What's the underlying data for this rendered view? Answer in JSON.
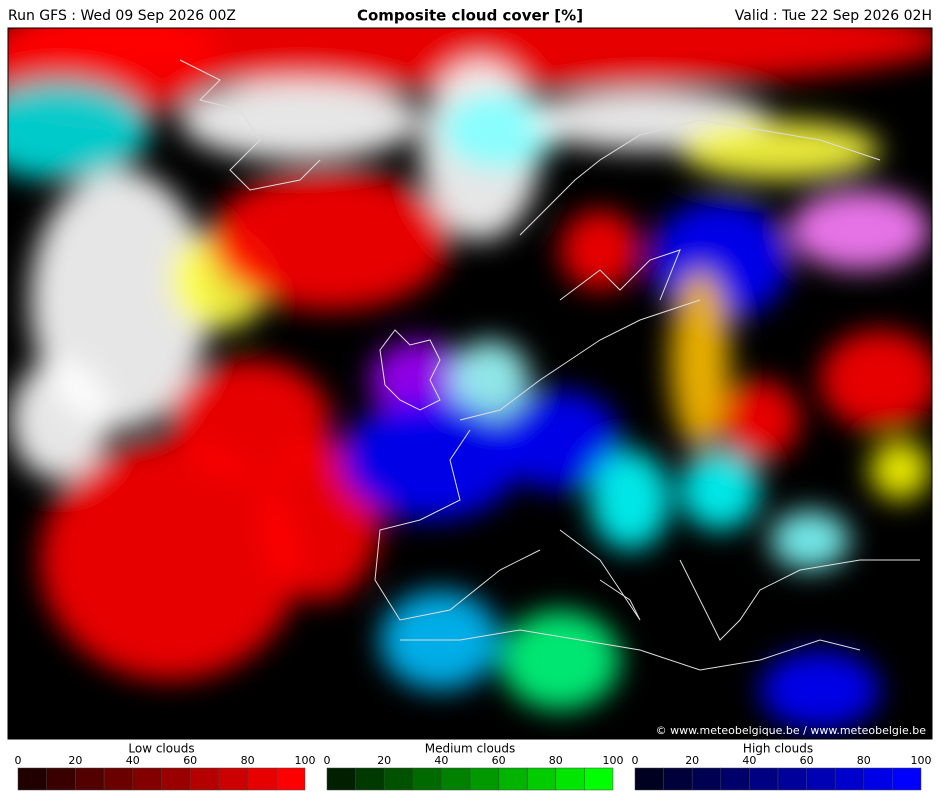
{
  "header": {
    "run": "Run GFS : Wed 09 Sep 2026 00Z",
    "title": "Composite cloud cover [%]",
    "valid": "Valid : Tue 22 Sep 2026 02H"
  },
  "map": {
    "credit": "© www.meteobelgique.be / www.meteobelgie.be"
  },
  "legends": [
    {
      "title": "Low clouds",
      "ticks": [
        0,
        20,
        40,
        60,
        80,
        100
      ],
      "colors": [
        "#200000",
        "#3a0000",
        "#520000",
        "#6a0000",
        "#820000",
        "#9a0000",
        "#b40000",
        "#cc0000",
        "#e60000",
        "#ff0000"
      ]
    },
    {
      "title": "Medium clouds",
      "ticks": [
        0,
        20,
        40,
        60,
        80,
        100
      ],
      "colors": [
        "#002000",
        "#003a00",
        "#005200",
        "#006a00",
        "#008200",
        "#009a00",
        "#00b400",
        "#00cc00",
        "#00e600",
        "#00ff00"
      ]
    },
    {
      "title": "High clouds",
      "ticks": [
        0,
        20,
        40,
        60,
        80,
        100
      ],
      "colors": [
        "#000020",
        "#00003a",
        "#000052",
        "#00006a",
        "#000082",
        "#00009a",
        "#0000b4",
        "#0000cc",
        "#0000e6",
        "#0000ff"
      ]
    }
  ]
}
